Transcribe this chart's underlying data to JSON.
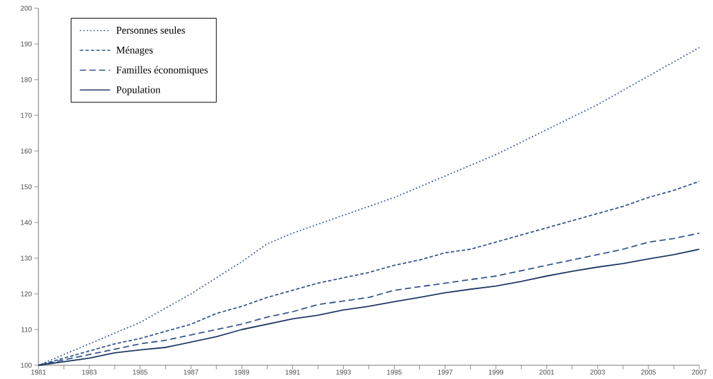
{
  "chart_data": {
    "type": "line",
    "x": [
      1981,
      1982,
      1983,
      1984,
      1985,
      1986,
      1987,
      1988,
      1989,
      1990,
      1991,
      1992,
      1993,
      1994,
      1995,
      1996,
      1997,
      1998,
      1999,
      2000,
      2001,
      2002,
      2003,
      2004,
      2005,
      2006,
      2007
    ],
    "series": [
      {
        "name": "Personnes seules",
        "color": "#34558b",
        "line_style": "dotted",
        "values": [
          100,
          103,
          106,
          109,
          112,
          116,
          120,
          124.5,
          129,
          134,
          137,
          139.5,
          142,
          144.5,
          147,
          150,
          153,
          156,
          159,
          162.5,
          166,
          169.5,
          173,
          177,
          181,
          185,
          189
        ]
      },
      {
        "name": "Ménages",
        "color": "#34558b",
        "line_style": "dashed",
        "values": [
          100,
          102,
          104,
          106,
          107.5,
          109.5,
          111.5,
          114.5,
          116.5,
          119,
          121,
          123,
          124.5,
          126,
          128,
          129.5,
          131.5,
          132.5,
          134.5,
          136.5,
          138.5,
          140.5,
          142.5,
          144.5,
          147,
          149,
          151.5
        ]
      },
      {
        "name": "Familles économiques",
        "color": "#34558b",
        "line_style": "dashed",
        "values": [
          100,
          101.5,
          103,
          104.5,
          106,
          107,
          108.5,
          110,
          111.5,
          113.5,
          115,
          117,
          118,
          119,
          121,
          122,
          123,
          124,
          125,
          126.5,
          128,
          129.5,
          131,
          132.5,
          134.5,
          135.5,
          137
        ]
      },
      {
        "name": "Population",
        "color": "#1f3864",
        "line_style": "solid",
        "values": [
          100,
          101,
          102,
          103.5,
          104.3,
          105,
          106.5,
          108,
          110,
          111.5,
          113,
          114,
          115.5,
          116.5,
          117.8,
          119,
          120.3,
          121.3,
          122.2,
          123.5,
          125,
          126.3,
          127.5,
          128.5,
          129.8,
          131,
          132.5
        ]
      }
    ],
    "xlim": [
      1981,
      2007
    ],
    "xticks": [
      1981,
      {
        "value": 1982,
        "label": null
      },
      1983,
      {
        "value": 1984,
        "label": null
      },
      1985,
      {
        "value": 1986,
        "label": null
      },
      1987,
      {
        "value": 1988,
        "label": null
      },
      1989,
      {
        "value": 1990,
        "label": null
      },
      1991,
      {
        "value": 1992,
        "label": null
      },
      1993,
      {
        "value": 1994,
        "label": null
      },
      1995,
      {
        "value": 1996,
        "label": null
      },
      1997,
      {
        "value": 1998,
        "label": null
      },
      1999,
      {
        "value": 2000,
        "label": null
      },
      2001,
      {
        "value": 2002,
        "label": null
      },
      2003,
      {
        "value": 2004,
        "label": null
      },
      2005,
      {
        "value": 2006,
        "label": null
      },
      2007
    ],
    "ylim": [
      100,
      200
    ],
    "yticks": [
      100,
      110,
      120,
      130,
      140,
      150,
      160,
      170,
      180,
      190,
      200
    ],
    "legend": "top left",
    "grid": false,
    "marker": "none"
  }
}
